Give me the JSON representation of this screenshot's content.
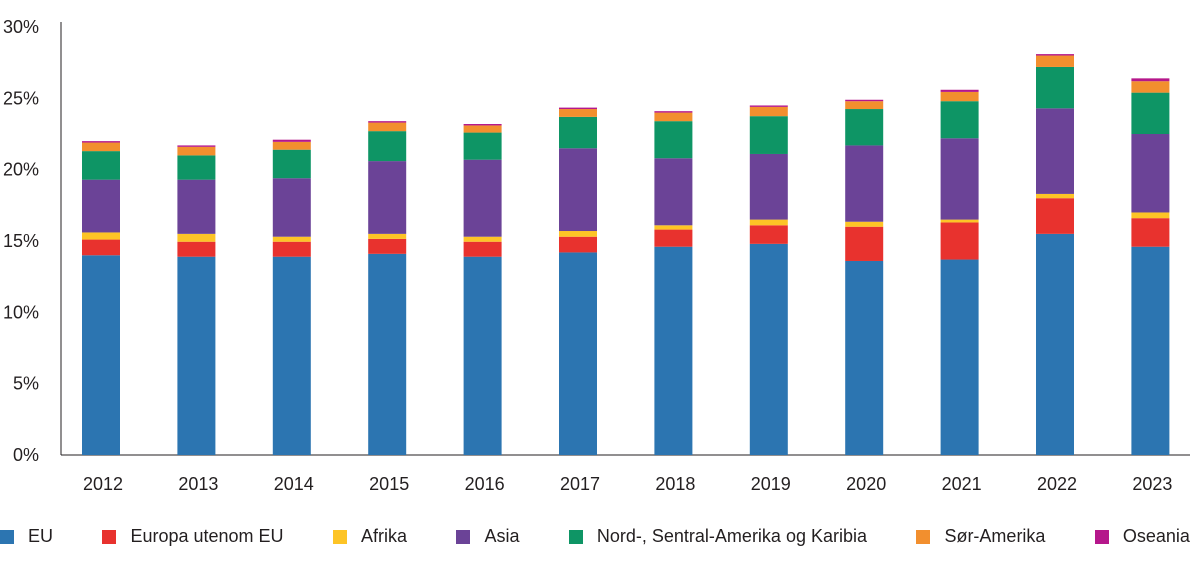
{
  "chart_data": {
    "type": "bar",
    "stacked": true,
    "categories": [
      "2012",
      "2013",
      "2014",
      "2015",
      "2016",
      "2017",
      "2018",
      "2019",
      "2020",
      "2021",
      "2022",
      "2023"
    ],
    "series": [
      {
        "name": "EU",
        "color": "#2c75b1",
        "values": [
          14.0,
          13.9,
          13.9,
          14.1,
          13.9,
          14.2,
          14.6,
          14.8,
          13.6,
          13.7,
          15.5,
          14.6
        ]
      },
      {
        "name": "Europa utenom EU",
        "color": "#e8322e",
        "values": [
          1.1,
          1.05,
          1.05,
          1.05,
          1.05,
          1.1,
          1.2,
          1.3,
          2.4,
          2.6,
          2.5,
          2.0
        ]
      },
      {
        "name": "Afrika",
        "color": "#fdc426",
        "values": [
          0.5,
          0.55,
          0.35,
          0.35,
          0.35,
          0.4,
          0.3,
          0.4,
          0.35,
          0.2,
          0.3,
          0.4
        ]
      },
      {
        "name": "Asia",
        "color": "#6b4397",
        "values": [
          3.7,
          3.8,
          4.1,
          5.1,
          5.4,
          5.8,
          4.7,
          4.6,
          5.35,
          5.7,
          6.0,
          5.5
        ]
      },
      {
        "name": "Nord-, Sentral-Amerika og Karibia",
        "color": "#0e9565",
        "values": [
          2.0,
          1.7,
          2.0,
          2.1,
          1.9,
          2.2,
          2.6,
          2.65,
          2.55,
          2.6,
          2.9,
          2.9
        ]
      },
      {
        "name": "Sør-Amerika",
        "color": "#f28f2e",
        "values": [
          0.6,
          0.6,
          0.55,
          0.6,
          0.5,
          0.55,
          0.6,
          0.65,
          0.55,
          0.65,
          0.8,
          0.8
        ]
      },
      {
        "name": "Oseania",
        "color": "#b5178b",
        "values": [
          0.1,
          0.1,
          0.15,
          0.1,
          0.1,
          0.1,
          0.1,
          0.1,
          0.1,
          0.15,
          0.1,
          0.2
        ]
      }
    ],
    "yticks": [
      "0%",
      "5%",
      "10%",
      "15%",
      "20%",
      "25%",
      "30%"
    ],
    "ylim": [
      0,
      30
    ],
    "grid": false,
    "legend": "bottom"
  }
}
